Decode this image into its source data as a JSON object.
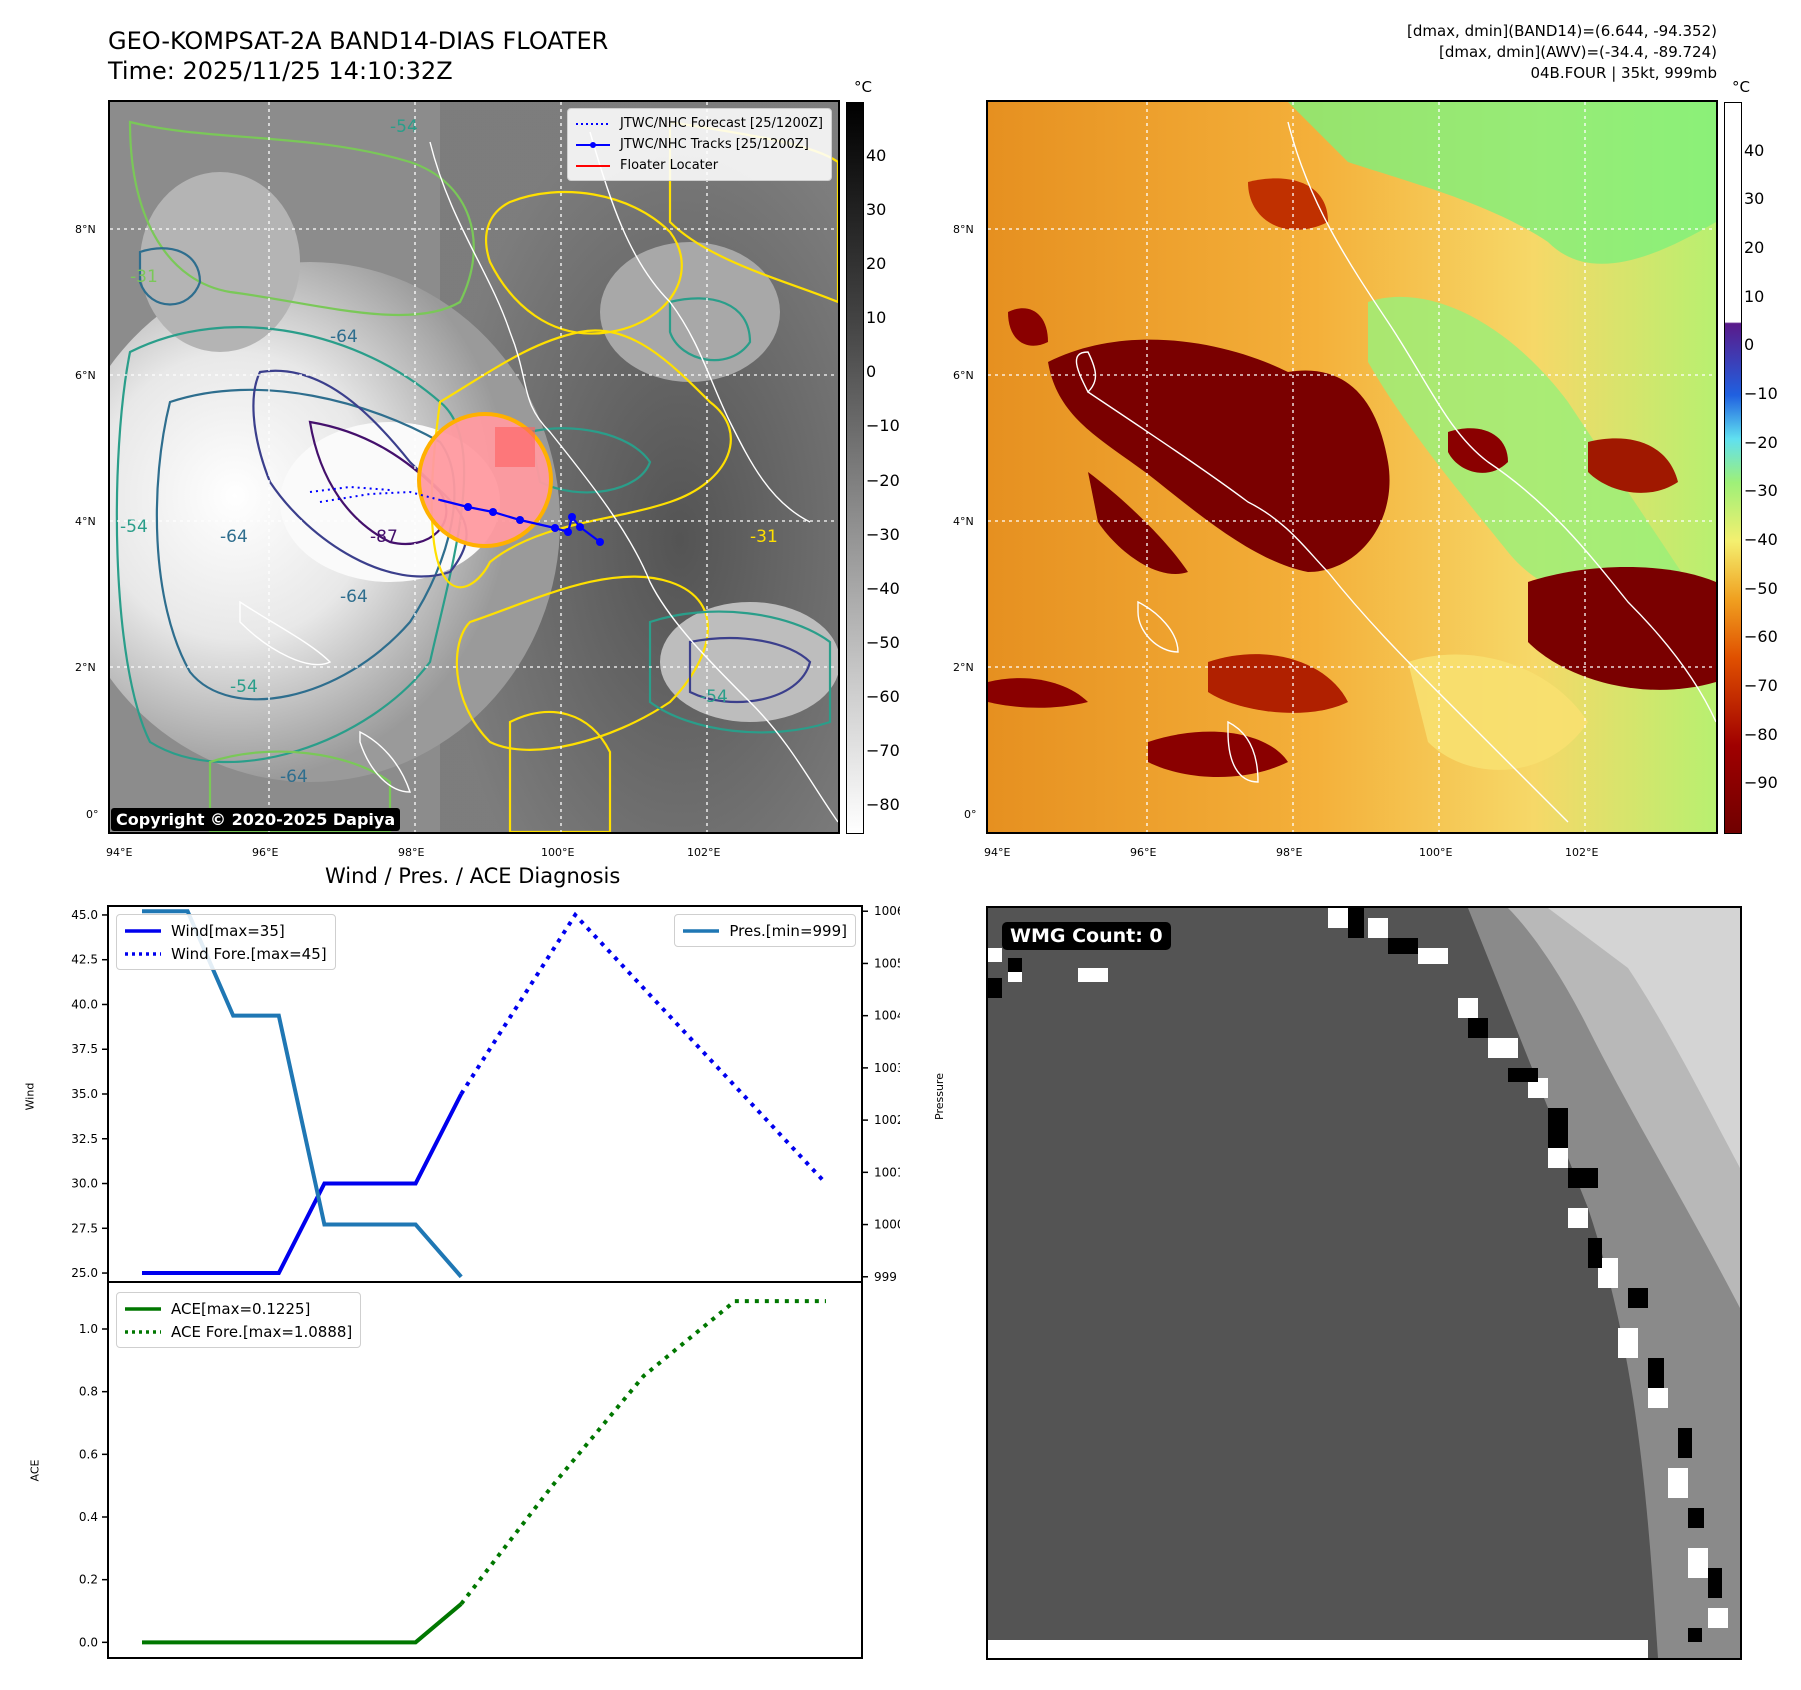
{
  "header": {
    "title_line1": "GEO-KOMPSAT-2A BAND14-DIAS FLOATER",
    "title_line2": "Time: 2025/11/25 14:10:32Z",
    "info_line1": "[dmax, dmin](BAND14)=(6.644, -94.352)",
    "info_line2": "[dmax, dmin](AWV)=(-34.4, -89.724)",
    "info_line3": "04B.FOUR | 35kt, 999mb"
  },
  "map_axes": {
    "lon_labels": [
      "94°E",
      "96°E",
      "98°E",
      "100°E",
      "102°E"
    ],
    "lat_labels": [
      "0°",
      "2°N",
      "4°N",
      "6°N",
      "8°N"
    ],
    "colors": {
      "coast": "#ffffff",
      "grid": "#ffffff"
    }
  },
  "ir_panel": {
    "colorbar_unit": "°C",
    "colorbar_ticks": [
      "40",
      "30",
      "20",
      "10",
      "0",
      "−10",
      "−20",
      "−30",
      "−40",
      "−50",
      "−60",
      "−70",
      "−80"
    ],
    "legend": [
      {
        "label": "JTWC/NHC Forecast [25/1200Z]",
        "style": "dotted",
        "color": "#0000ff"
      },
      {
        "label": "JTWC/NHC Tracks [25/1200Z]",
        "style": "solid-marker",
        "color": "#0000ff"
      },
      {
        "label": "Floater Locater",
        "style": "solid",
        "color": "#ff0000"
      }
    ],
    "copyright": "Copyright © 2020-2025 Dapiya",
    "contour_labels": [
      "-54",
      "-31",
      "-64",
      "-87",
      "-54",
      "-64",
      "-64",
      "-54",
      "-64",
      "-31",
      "-54"
    ],
    "contour_colors": [
      "#ffe000",
      "#c8e040",
      "#7ac858",
      "#2a9e8a",
      "#2e6e8e",
      "#3b3f8c",
      "#44106c"
    ]
  },
  "awv_panel": {
    "colorbar_unit": "°C",
    "colorbar_ticks": [
      "40",
      "30",
      "20",
      "10",
      "0",
      "−10",
      "−20",
      "−30",
      "−40",
      "−50",
      "−60",
      "−70",
      "−80",
      "−90"
    ]
  },
  "diagnosis": {
    "title": "Wind / Pres. / ACE Diagnosis",
    "wind_ylabel": "Wind",
    "pres_ylabel": "Pressure",
    "ace_ylabel": "ACE",
    "wind_legend": [
      "Wind[max=35]",
      "Wind Fore.[max=45]"
    ],
    "pres_legend": [
      "Pres.[min=999]"
    ],
    "ace_legend": [
      "ACE[max=0.1225]",
      "ACE Fore.[max=1.0888]"
    ],
    "colors": {
      "wind": "#0000ee",
      "pres": "#1f77b4",
      "ace": "#007700"
    }
  },
  "wmg_panel": {
    "badge": "WMG Count: 0"
  },
  "chart_data": [
    {
      "type": "line",
      "name_axis": "Wind",
      "x": [
        0,
        1,
        2,
        3,
        4,
        5,
        6,
        7,
        8,
        9,
        10,
        11,
        12,
        13,
        14,
        15
      ],
      "ylim": [
        24.5,
        45.5
      ],
      "yticks": [
        "25.0",
        "27.5",
        "30.0",
        "32.5",
        "35.0",
        "37.5",
        "40.0",
        "42.5",
        "45.0"
      ],
      "series": [
        {
          "name": "Wind[max=35]",
          "style": "solid",
          "x": [
            0,
            1,
            2,
            3,
            4,
            5,
            6,
            7
          ],
          "values": [
            25,
            25,
            25,
            25,
            30,
            30,
            30,
            35
          ]
        },
        {
          "name": "Wind Fore.[max=45]",
          "style": "dotted",
          "x": [
            7,
            9.5,
            15
          ],
          "values": [
            35,
            45,
            30
          ]
        }
      ]
    },
    {
      "type": "line",
      "name_axis": "Pressure",
      "ylim": [
        998.9,
        1006.1
      ],
      "yticks": [
        "999",
        "1000",
        "1001",
        "1002",
        "1003",
        "1004",
        "1005",
        "1006"
      ],
      "series": [
        {
          "name": "Pres.[min=999]",
          "style": "solid",
          "x": [
            0,
            1,
            2,
            3,
            4,
            5,
            6,
            7
          ],
          "values": [
            1006,
            1006,
            1004,
            1004,
            1000,
            1000,
            1000,
            999
          ]
        }
      ]
    },
    {
      "type": "line",
      "name_axis": "ACE",
      "ylim": [
        -0.05,
        1.15
      ],
      "yticks": [
        "0.0",
        "0.2",
        "0.4",
        "0.6",
        "0.8",
        "1.0"
      ],
      "series": [
        {
          "name": "ACE[max=0.1225]",
          "style": "solid",
          "x": [
            0,
            6,
            7
          ],
          "values": [
            0,
            0,
            0.1225
          ]
        },
        {
          "name": "ACE Fore.[max=1.0888]",
          "style": "dotted",
          "x": [
            7,
            9,
            11,
            13,
            15
          ],
          "values": [
            0.1225,
            0.5,
            0.85,
            1.0888,
            1.0888
          ]
        }
      ]
    }
  ]
}
